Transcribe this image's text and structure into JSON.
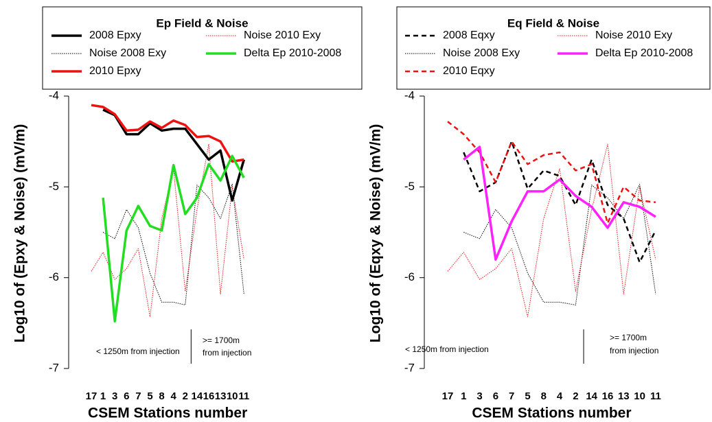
{
  "chart_data": [
    {
      "type": "line",
      "legend_title": "Ep Field & Noise",
      "x_label": "CSEM Stations number",
      "y_label": "Log10 of (Epxy & Noise) (mV/m)",
      "categories": [
        "17",
        "1",
        "3",
        "6",
        "7",
        "5",
        "8",
        "4",
        "2",
        "14",
        "16",
        "13",
        "10",
        "11"
      ],
      "ylim": [
        -7,
        -4
      ],
      "yticks": [
        -4,
        -5,
        -6,
        -7
      ],
      "annotations": [
        "< 1250m from injection",
        ">= 1700m",
        "from injection"
      ],
      "series": [
        {
          "name": "2008 Epxy",
          "color": "#000000",
          "style": "solid",
          "values": [
            null,
            -4.15,
            -4.21,
            -4.42,
            -4.42,
            -4.3,
            -4.38,
            -4.36,
            -4.36,
            -4.53,
            -4.7,
            -4.6,
            -5.15,
            -4.7
          ]
        },
        {
          "name": "Noise 2008 Exy",
          "color": "#000000",
          "style": "dotted",
          "values": [
            null,
            -5.5,
            -5.57,
            -5.25,
            -5.45,
            -5.95,
            -6.27,
            -6.27,
            -6.3,
            -4.98,
            -5.12,
            -5.35,
            -4.97,
            -6.18
          ]
        },
        {
          "name": "2010 Epxy",
          "color": "#ee1111",
          "style": "solid",
          "values": [
            -4.1,
            -4.12,
            -4.2,
            -4.38,
            -4.37,
            -4.28,
            -4.35,
            -4.27,
            -4.32,
            -4.45,
            -4.44,
            -4.5,
            -4.72,
            -4.7
          ]
        },
        {
          "name": "Noise 2010 Exy",
          "color": "#ee1111",
          "style": "dotted",
          "values": [
            -5.93,
            -5.72,
            -6.02,
            -5.9,
            -5.68,
            -6.43,
            -5.35,
            -4.8,
            -6.15,
            -5.25,
            -4.53,
            -6.18,
            -5.0,
            -5.8
          ]
        },
        {
          "name": "Delta Ep 2010-2008",
          "color": "#22dd22",
          "style": "solid",
          "values": [
            null,
            -5.12,
            -6.48,
            -5.48,
            -5.21,
            -5.43,
            -5.48,
            -4.76,
            -5.3,
            -5.12,
            -4.75,
            -4.93,
            -4.66,
            -4.9
          ]
        }
      ]
    },
    {
      "type": "line",
      "legend_title": "Eq Field & Noise",
      "x_label": "CSEM Stations number",
      "y_label": "Log10 of (Eqxy & Noise) (mV/m)",
      "categories": [
        "17",
        "1",
        "3",
        "6",
        "7",
        "5",
        "8",
        "4",
        "2",
        "14",
        "16",
        "13",
        "10",
        "11"
      ],
      "ylim": [
        -7,
        -4
      ],
      "yticks": [
        -4,
        -5,
        -6,
        -7
      ],
      "annotations": [
        "< 1250m from injection",
        ">= 1700m",
        "from injection"
      ],
      "series": [
        {
          "name": "2008 Eqxy",
          "color": "#000000",
          "style": "dashed",
          "values": [
            null,
            -4.62,
            -5.05,
            -4.95,
            -4.5,
            -5.02,
            -4.82,
            -4.88,
            -5.2,
            -4.7,
            -5.2,
            -5.35,
            -5.83,
            -5.48
          ]
        },
        {
          "name": "Noise 2008 Exy",
          "color": "#000000",
          "style": "dotted",
          "values": [
            null,
            -5.5,
            -5.57,
            -5.25,
            -5.45,
            -5.95,
            -6.27,
            -6.27,
            -6.3,
            -4.98,
            -5.12,
            -5.35,
            -4.97,
            -6.18
          ]
        },
        {
          "name": "2010 Eqxy",
          "color": "#ee1111",
          "style": "dashed",
          "values": [
            -4.28,
            -4.42,
            -4.62,
            -4.95,
            -4.5,
            -4.75,
            -4.65,
            -4.62,
            -4.82,
            -4.75,
            -5.4,
            -5.0,
            -5.15,
            -5.17
          ]
        },
        {
          "name": "Noise 2010 Exy",
          "color": "#ee1111",
          "style": "dotted",
          "values": [
            -5.93,
            -5.72,
            -6.02,
            -5.9,
            -5.68,
            -6.43,
            -5.35,
            -4.8,
            -6.15,
            -5.25,
            -4.53,
            -6.18,
            -5.0,
            -5.8
          ]
        },
        {
          "name": "Delta Ep 2010-2008",
          "color": "#ff22ff",
          "style": "solid",
          "values": [
            null,
            -4.7,
            -4.56,
            -5.8,
            -5.38,
            -5.05,
            -5.05,
            -4.92,
            -5.1,
            -5.22,
            -5.45,
            -5.17,
            -5.22,
            -5.33
          ]
        }
      ]
    }
  ]
}
